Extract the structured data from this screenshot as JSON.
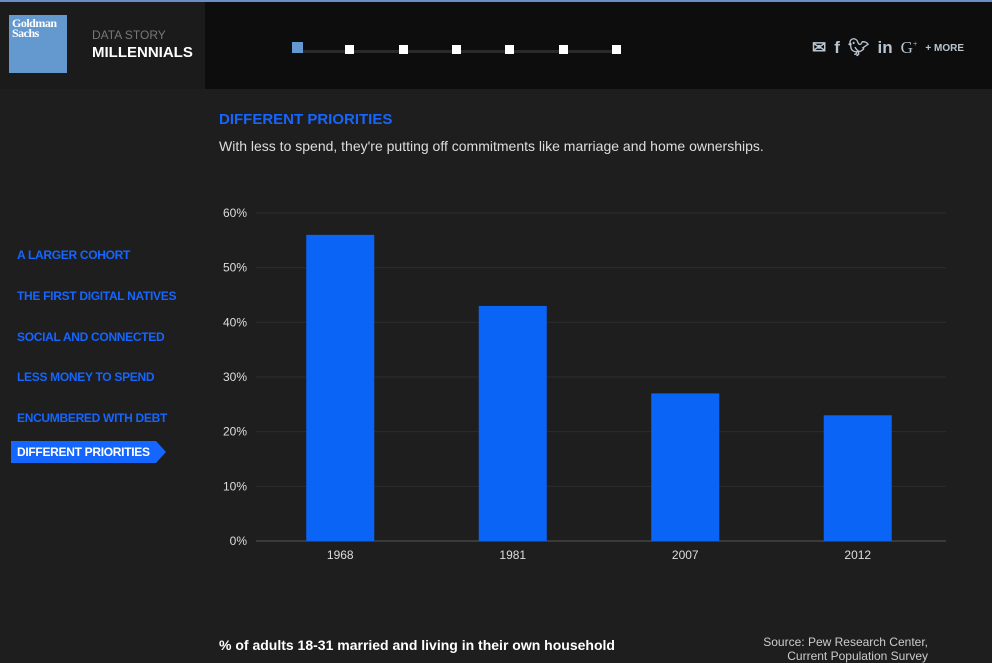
{
  "header": {
    "logo_text": "Goldman Sachs",
    "kicker": "DATA STORY",
    "title": "MILLENNIALS",
    "progress_steps": 7,
    "active_step": 1,
    "social": [
      "mail-icon",
      "facebook-icon",
      "twitter-icon",
      "linkedin-icon",
      "google-plus-icon"
    ],
    "more_label": "+ MORE"
  },
  "nav": {
    "items": [
      {
        "label": "A LARGER COHORT"
      },
      {
        "label": "THE FIRST DIGITAL NATIVES"
      },
      {
        "label": "SOCIAL AND CONNECTED"
      },
      {
        "label": "LESS MONEY TO SPEND"
      },
      {
        "label": "ENCUMBERED WITH DEBT"
      },
      {
        "label": "DIFFERENT PRIORITIES"
      }
    ],
    "active": 5
  },
  "section": {
    "title": "DIFFERENT PRIORITIES",
    "subtitle": "With less to spend, they're putting off commitments like marriage and home ownerships."
  },
  "chart_data": {
    "type": "bar",
    "title": "% of adults 18-31 married and living in their own household",
    "categories": [
      "1968",
      "1981",
      "2007",
      "2012"
    ],
    "values": [
      56,
      43,
      27,
      23
    ],
    "ylim": [
      0,
      60
    ],
    "yticks": [
      "0%",
      "10%",
      "20%",
      "30%",
      "40%",
      "50%",
      "60%"
    ],
    "grid": true,
    "color": "#0a64f5",
    "source": [
      "Source: Pew Research Center,",
      "Current Population Survey"
    ]
  }
}
